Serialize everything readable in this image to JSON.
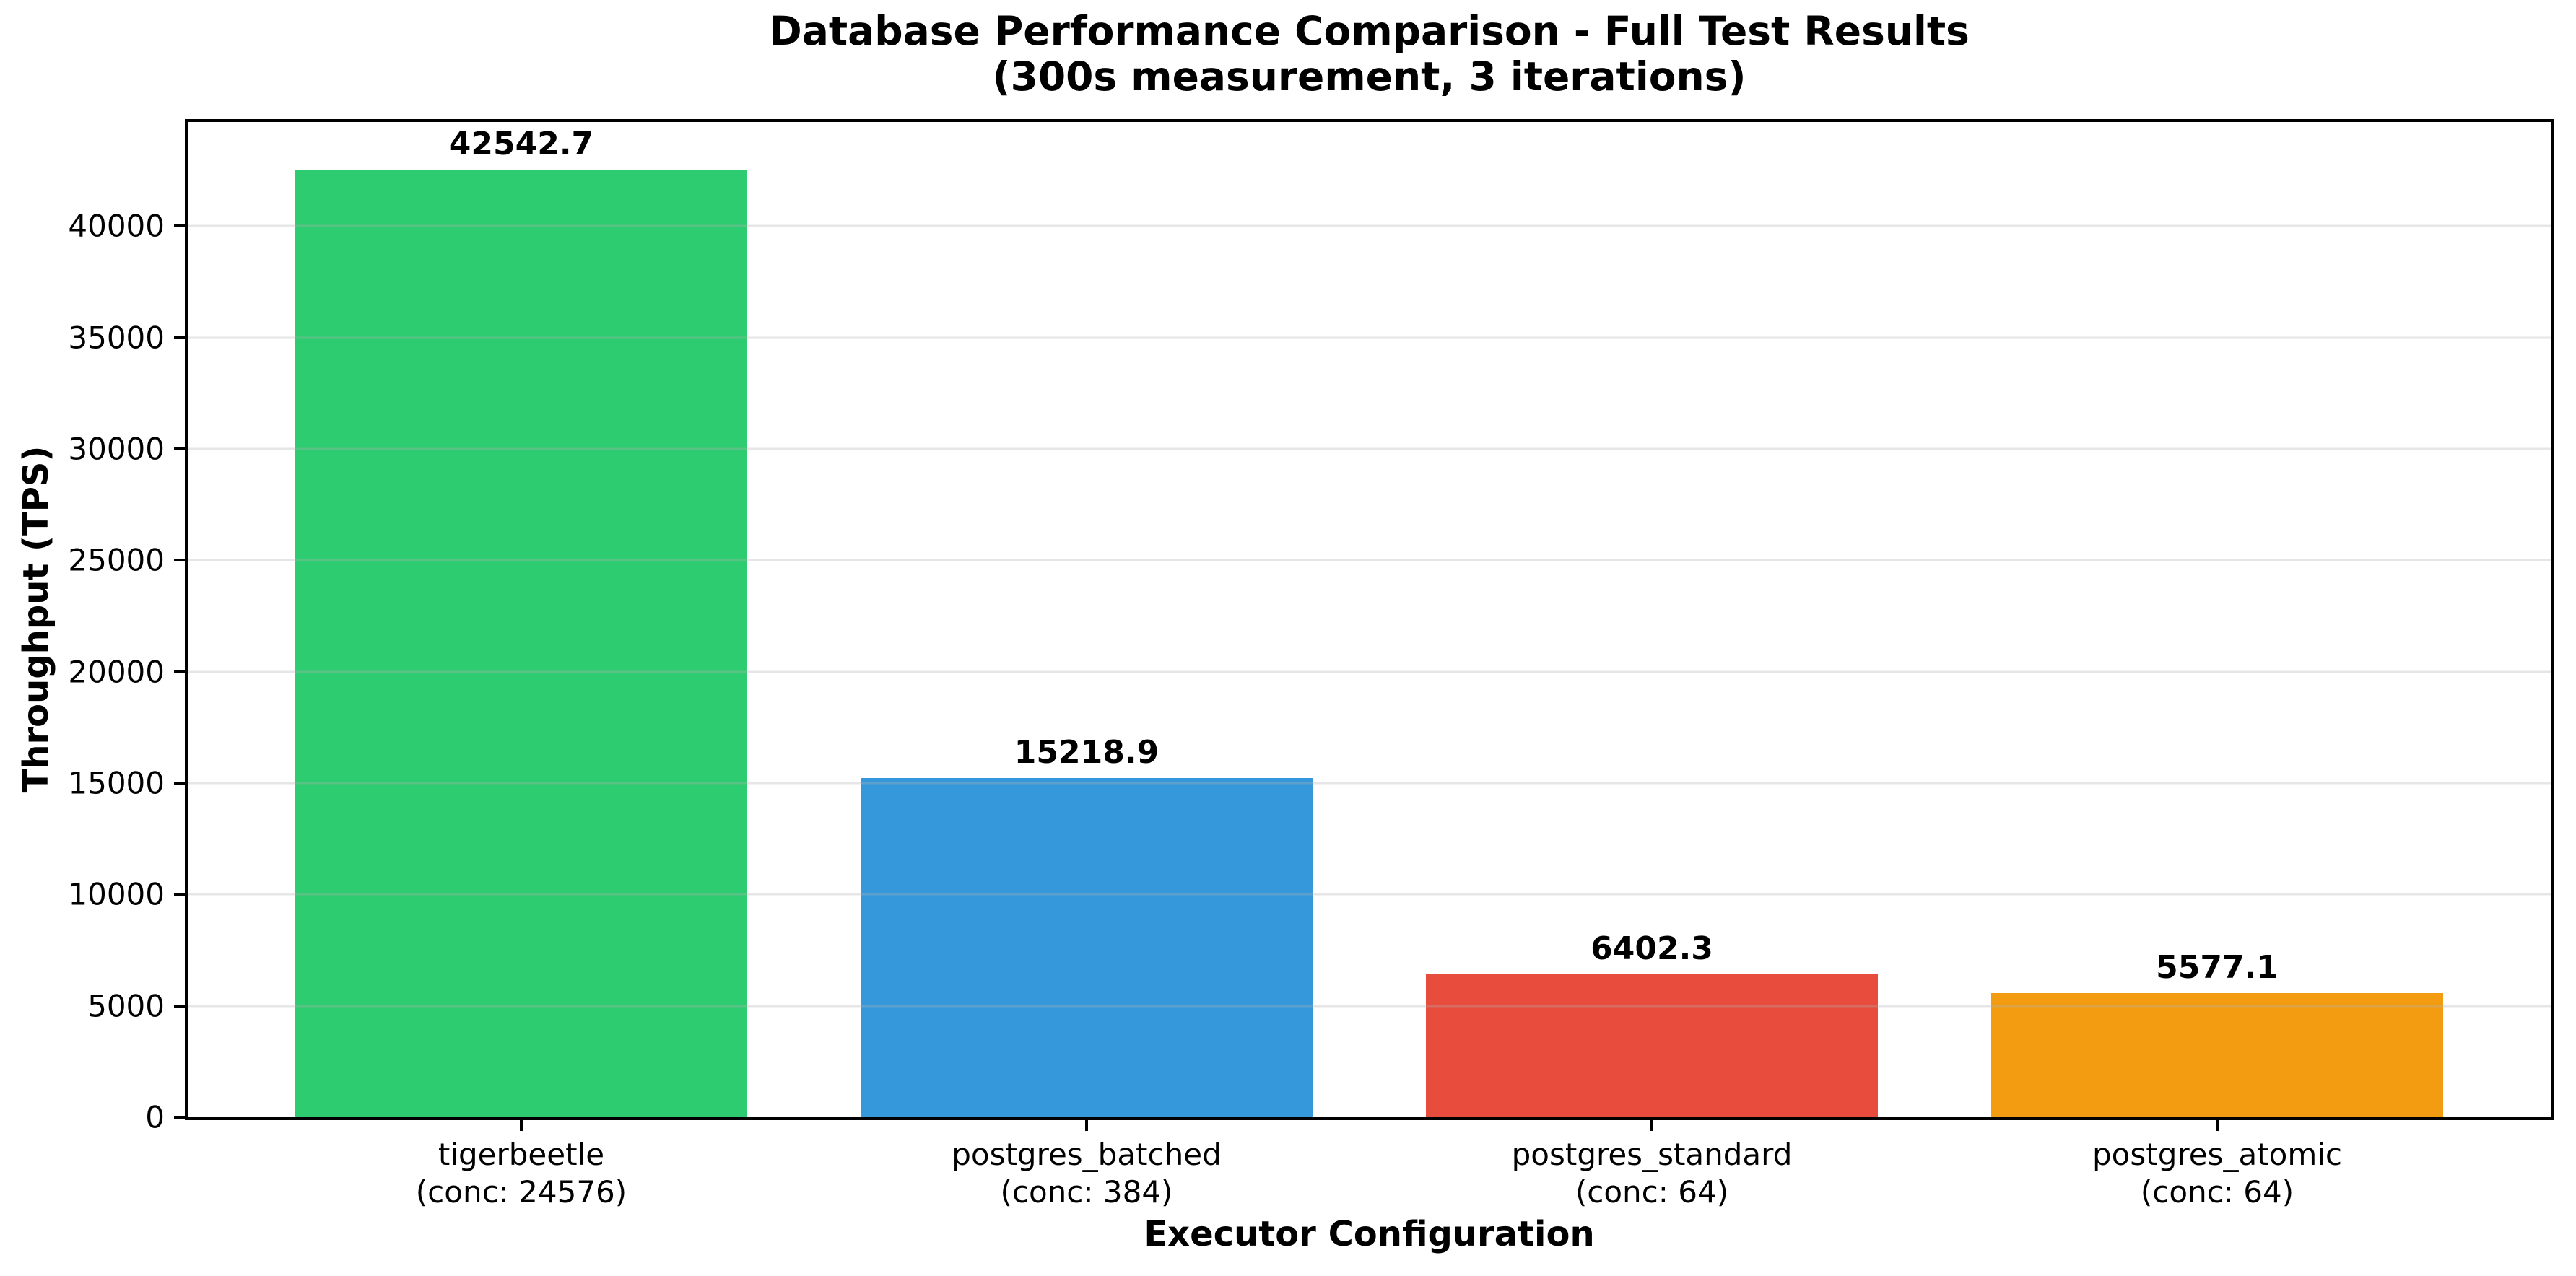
{
  "chart_data": {
    "type": "bar",
    "title": "Database Performance Comparison - Full Test Results",
    "subtitle": "(300s measurement, 3 iterations)",
    "xlabel": "Executor Configuration",
    "ylabel": "Throughput (TPS)",
    "categories": [
      "tigerbeetle",
      "postgres_batched",
      "postgres_standard",
      "postgres_atomic"
    ],
    "category_sublabels": [
      "(conc: 24576)",
      "(conc: 384)",
      "(conc: 64)",
      "(conc: 64)"
    ],
    "concurrency": [
      24576,
      384,
      64,
      64
    ],
    "values": [
      42542.7,
      15218.9,
      6402.3,
      5577.1
    ],
    "value_labels": [
      "42542.7",
      "15218.9",
      "6402.3",
      "5577.1"
    ],
    "bar_colors": [
      "#2ecc71",
      "#3498db",
      "#e74c3c",
      "#f39c12"
    ],
    "yticks": [
      0,
      5000,
      10000,
      15000,
      20000,
      25000,
      30000,
      35000,
      40000
    ],
    "ylim": [
      0,
      44670
    ],
    "xlim": [
      -0.59,
      3.59
    ],
    "x_positions": [
      0,
      1,
      2,
      3
    ],
    "bar_width": 0.8,
    "grid": {
      "axis": "y",
      "color": "#b0b0b0",
      "alpha": 0.3,
      "drawn_over_bars": true
    },
    "legend": null,
    "background": "#ffffff",
    "spine_color": "#000000"
  }
}
